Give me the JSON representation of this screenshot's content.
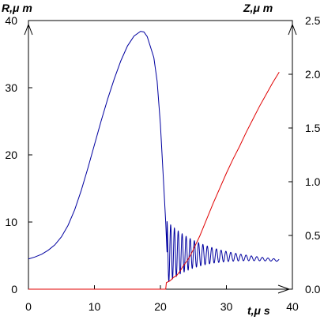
{
  "chart_data": {
    "type": "line",
    "xlabel": "t,μ s",
    "ylabel_left": "R,μ m",
    "ylabel_right": "Z,μ m",
    "xlim": [
      0,
      40
    ],
    "ylim_left": [
      0,
      40
    ],
    "ylim_right": [
      0,
      2.5
    ],
    "x_ticks": [
      "0",
      "10",
      "20",
      "30",
      "40"
    ],
    "y_ticks_left": [
      "0",
      "10",
      "20",
      "30",
      "40"
    ],
    "y_ticks_right": [
      "0.0",
      "0.5",
      "1.0",
      "1.5",
      "2.0",
      "2.5"
    ],
    "grid": false,
    "series": [
      {
        "axis": "left",
        "color": "#0000a0",
        "points": [
          [
            0,
            4.5
          ],
          [
            1,
            4.8
          ],
          [
            2,
            5.2
          ],
          [
            3,
            5.8
          ],
          [
            4,
            6.6
          ],
          [
            5,
            7.8
          ],
          [
            6,
            9.5
          ],
          [
            7,
            11.8
          ],
          [
            8,
            14.7
          ],
          [
            9,
            18.0
          ],
          [
            10,
            21.5
          ],
          [
            11,
            25.0
          ],
          [
            12,
            28.3
          ],
          [
            13,
            31.3
          ],
          [
            14,
            34.0
          ],
          [
            15,
            36.2
          ],
          [
            16,
            37.7
          ],
          [
            17,
            38.4
          ],
          [
            17.5,
            38.3
          ],
          [
            18,
            37.6
          ],
          [
            19,
            34.5
          ],
          [
            19.5,
            31.0
          ],
          [
            20,
            24.5
          ],
          [
            20.5,
            15.5
          ],
          [
            20.8,
            10.0
          ],
          [
            21.0,
            5.5
          ]
        ],
        "oscillation": {
          "start": 21.0,
          "end": 38.0,
          "center_start": 5.5,
          "center_end": 4.3,
          "amplitude_start": 4.6,
          "period_start": 0.55,
          "period_end": 0.9,
          "decay": 0.2
        }
      },
      {
        "axis": "right",
        "color": "#e00000",
        "points": [
          [
            0,
            0.0
          ],
          [
            20.8,
            0.0
          ],
          [
            20.9,
            0.06
          ],
          [
            21.5,
            0.08
          ],
          [
            22.0,
            0.11
          ],
          [
            22.5,
            0.13
          ],
          [
            23.0,
            0.17
          ],
          [
            23.5,
            0.22
          ],
          [
            24.0,
            0.26
          ],
          [
            24.5,
            0.31
          ],
          [
            25.0,
            0.37
          ],
          [
            26.0,
            0.5
          ],
          [
            27.0,
            0.65
          ],
          [
            28.0,
            0.8
          ],
          [
            29.0,
            0.94
          ],
          [
            30.0,
            1.08
          ],
          [
            31.0,
            1.21
          ],
          [
            32.0,
            1.33
          ],
          [
            33.0,
            1.46
          ],
          [
            34.0,
            1.58
          ],
          [
            35.0,
            1.7
          ],
          [
            36.0,
            1.81
          ],
          [
            37.0,
            1.92
          ],
          [
            38.0,
            2.02
          ]
        ]
      }
    ]
  }
}
